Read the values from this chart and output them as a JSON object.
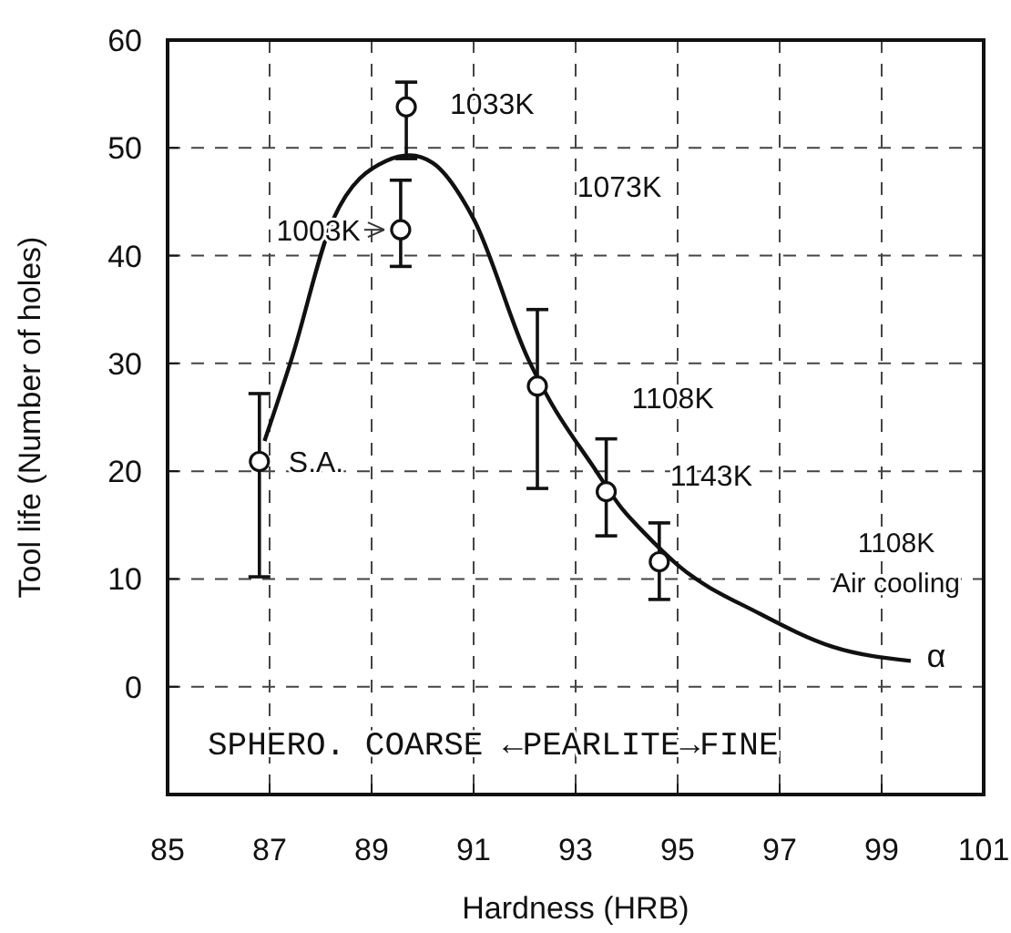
{
  "chart_data": {
    "type": "scatter",
    "xlabel": "Hardness (HRB)",
    "ylabel": "Tool life (Number of holes)",
    "xlim": [
      85,
      101
    ],
    "xticks": [
      85,
      87,
      89,
      91,
      93,
      95,
      97,
      99,
      101
    ],
    "ylim": [
      -10,
      60
    ],
    "yticks": [
      0,
      10,
      20,
      30,
      40,
      50,
      60
    ],
    "grid": true,
    "marker": "circle",
    "series": [
      {
        "type": "line",
        "marker": "none",
        "line_style": "solid",
        "color": "#111111",
        "x": [
          86.9,
          87.43,
          88.25,
          89.29,
          89.75,
          90.2,
          91.0,
          92.07,
          92.5,
          93.32,
          93.93,
          94.32,
          95.0,
          96.6,
          98.04,
          99.57
        ],
        "values": [
          22.8,
          30.4,
          43.4,
          48.8,
          49.3,
          48.6,
          43.4,
          30.4,
          26.5,
          20.6,
          16.4,
          14.4,
          11.3,
          6.8,
          3.7,
          2.4
        ]
      },
      {
        "color": "#111111",
        "x": [
          86.8,
          89.68,
          89.57,
          92.25,
          93.6,
          94.64
        ],
        "values": [
          20.9,
          53.8,
          42.4,
          27.9,
          18.1,
          11.6
        ],
        "errors": [
          [
            10.2,
            27.2
          ],
          [
            49.0,
            56.1
          ],
          [
            39.0,
            47.0
          ],
          [
            18.4,
            35.0
          ],
          [
            14.0,
            23.0
          ],
          [
            8.1,
            15.2
          ]
        ]
      }
    ],
    "annotations": [
      {
        "text": "S.A.",
        "x": 86.8,
        "y": 20.9
      },
      {
        "text": "1033K",
        "x": 89.68,
        "y": 53.8
      },
      {
        "text": "1003K",
        "x": 89.57,
        "y": 42.4
      },
      "1073K",
      {
        "text": "1108K",
        "x": 93.6,
        "y": 18.1
      },
      {
        "text": "1143K",
        "x": 94.64,
        "y": 11.6
      },
      "1108K\nAir cooling",
      "α",
      "SPHERO.  COARSE ←PEARLITE→FINE"
    ]
  }
}
